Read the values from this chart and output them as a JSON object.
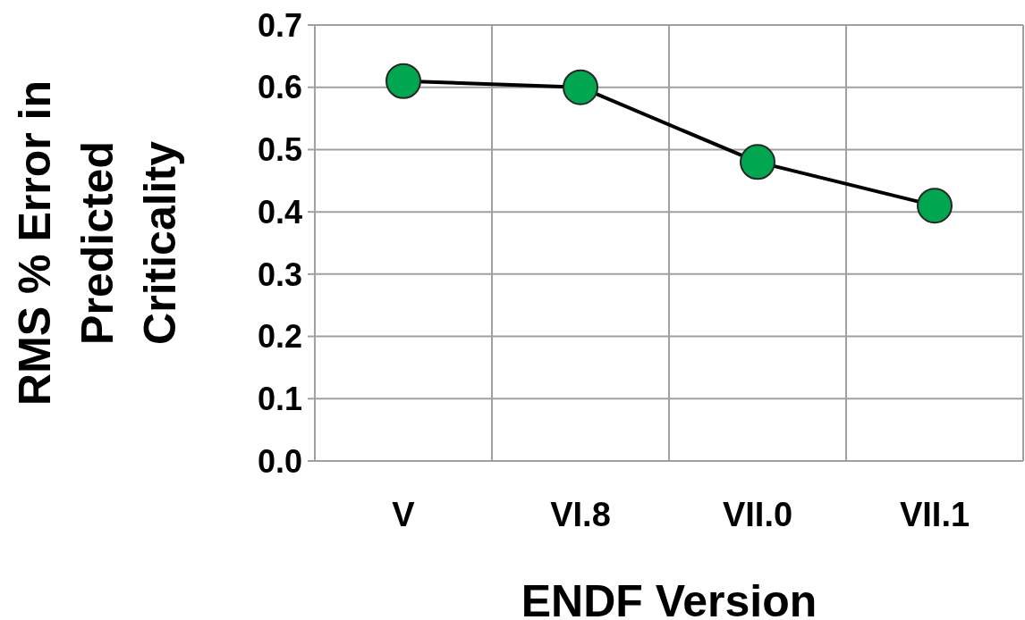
{
  "chart_data": {
    "type": "line",
    "xlabel": "ENDF Version",
    "ylabel": "RMS % Error in Predicted Criticality",
    "categories": [
      "V",
      "VI.8",
      "VII.0",
      "VII.1"
    ],
    "series": [
      {
        "color": "#00a650",
        "values": [
          0.61,
          0.6,
          0.48,
          0.41
        ]
      }
    ],
    "ylim": [
      0,
      0.7
    ],
    "yticks": [
      {
        "value": 0,
        "label": "0.0"
      },
      0.1,
      0.2,
      0.3,
      0.4,
      0.5,
      0.6,
      0.7
    ],
    "grid": true,
    "marker": "circle",
    "line_style": "solid"
  }
}
